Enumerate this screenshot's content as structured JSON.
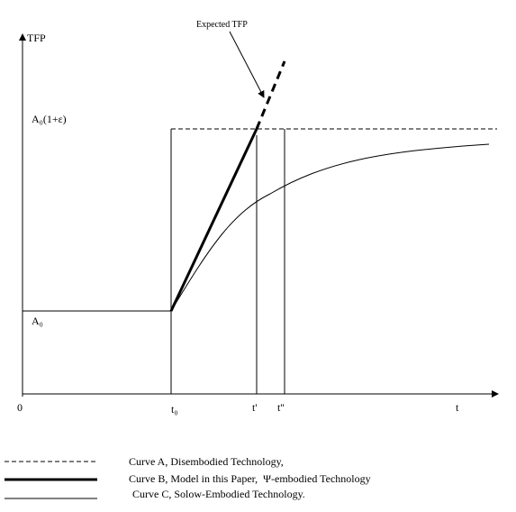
{
  "annotation": "Expected TFP",
  "y_axis": {
    "label": "TFP",
    "levels": [
      "A₀(1+ε)",
      "A₀"
    ]
  },
  "x_axis": {
    "label": "t",
    "origin": "0",
    "points": [
      "t₀",
      "t'",
      "t''"
    ]
  },
  "legend": [
    {
      "label": "Curve A, Disembodied Technology,"
    },
    {
      "label": "Curve B, Model in this Paper,  Ψ-embodied Technology"
    },
    {
      "label": "Curve C, Solow-Embodied Technology."
    }
  ]
}
